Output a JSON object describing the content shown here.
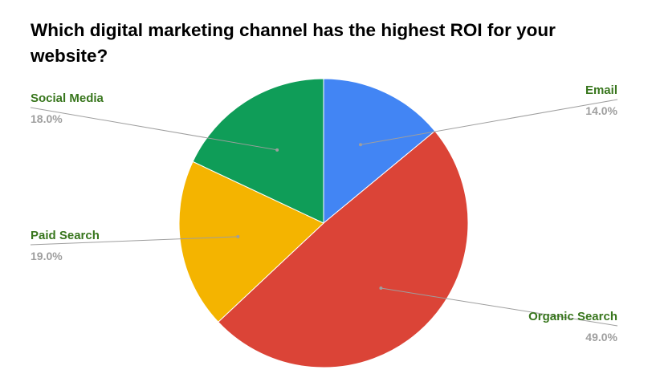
{
  "chart_data": {
    "type": "pie",
    "title": "Which digital marketing channel has the highest ROI for your website?",
    "categories": [
      "Email",
      "Organic Search",
      "Paid Search",
      "Social Media"
    ],
    "values": [
      14.0,
      49.0,
      19.0,
      18.0
    ],
    "value_labels": [
      "14.0%",
      "49.0%",
      "19.0%",
      "18.0%"
    ],
    "colors": [
      "#4285f4",
      "#db4437",
      "#f4b400",
      "#0f9d58"
    ],
    "start_angle_deg": 0,
    "direction": "clockwise",
    "label_color": "#38761d",
    "value_label_color": "#9e9e9e",
    "leader_line_color": "#9e9e9e",
    "legend": "labels-with-leader-lines"
  }
}
